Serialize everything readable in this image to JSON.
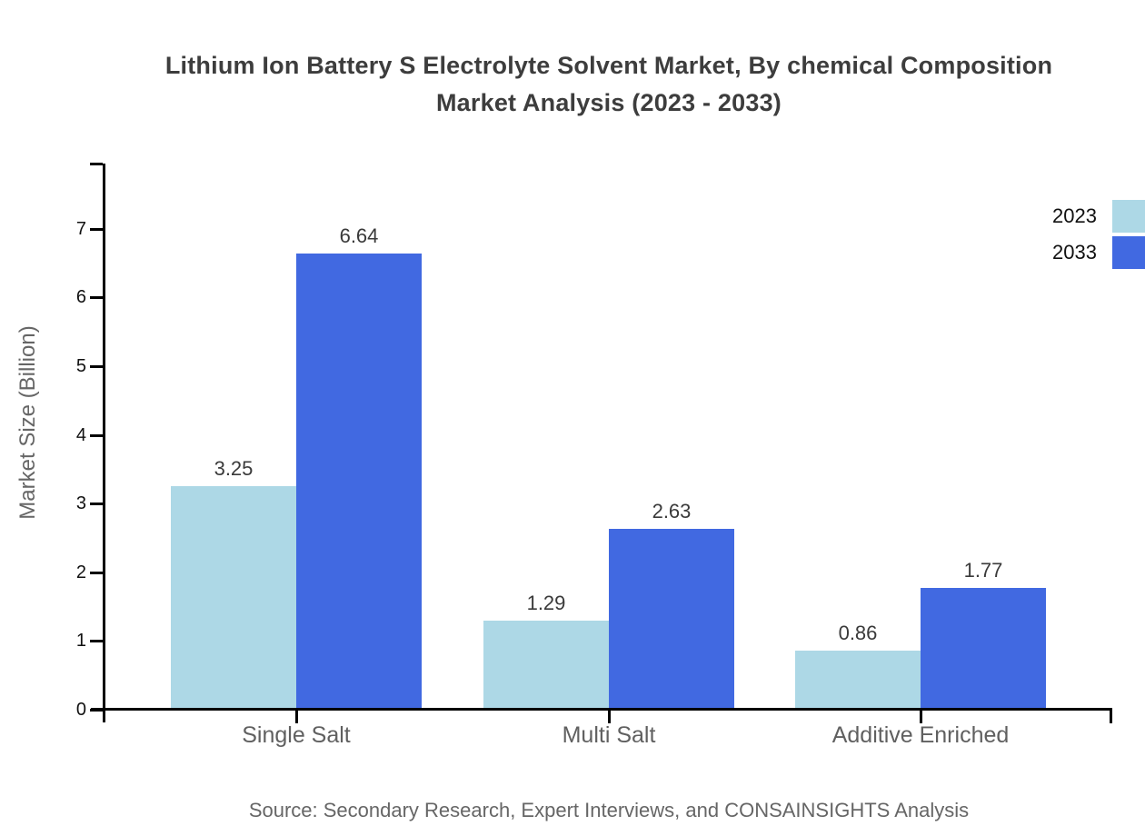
{
  "title": {
    "line1": "Lithium Ion Battery S Electrolyte Solvent Market, By chemical Composition",
    "line2": "Market Analysis (2023 - 2033)"
  },
  "source": "Source: Secondary Research, Expert Interviews, and CONSAINSIGHTS Analysis",
  "chart_data": {
    "type": "bar",
    "categories": [
      "Single Salt",
      "Multi Salt",
      "Additive Enriched"
    ],
    "series": [
      {
        "name": "2023",
        "color": "#ADD8E6",
        "values": [
          3.25,
          1.29,
          0.86
        ]
      },
      {
        "name": "2033",
        "color": "#4169E1",
        "values": [
          6.64,
          2.63,
          1.77
        ]
      }
    ],
    "value_labels": {
      "2023": [
        "3.25",
        "1.29",
        "0.86"
      ],
      "2033": [
        "6.64",
        "2.63",
        "1.77"
      ]
    },
    "title": "Lithium Ion Battery S Electrolyte Solvent Market, By chemical Composition Market Analysis (2023 - 2033)",
    "xlabel": "",
    "ylabel": "Market Size (Billion)",
    "yticks": [
      0,
      1,
      2,
      3,
      4,
      5,
      6,
      7
    ],
    "ylim": [
      0,
      7.95
    ],
    "grid": false,
    "legend_position": "top-right",
    "axis_color": "#000000",
    "text_colors": {
      "title": "#3d3d3d",
      "tick_labels": "#111111",
      "category_labels": "#606060",
      "value_labels": "#3a3a3a",
      "source": "#666666"
    }
  }
}
